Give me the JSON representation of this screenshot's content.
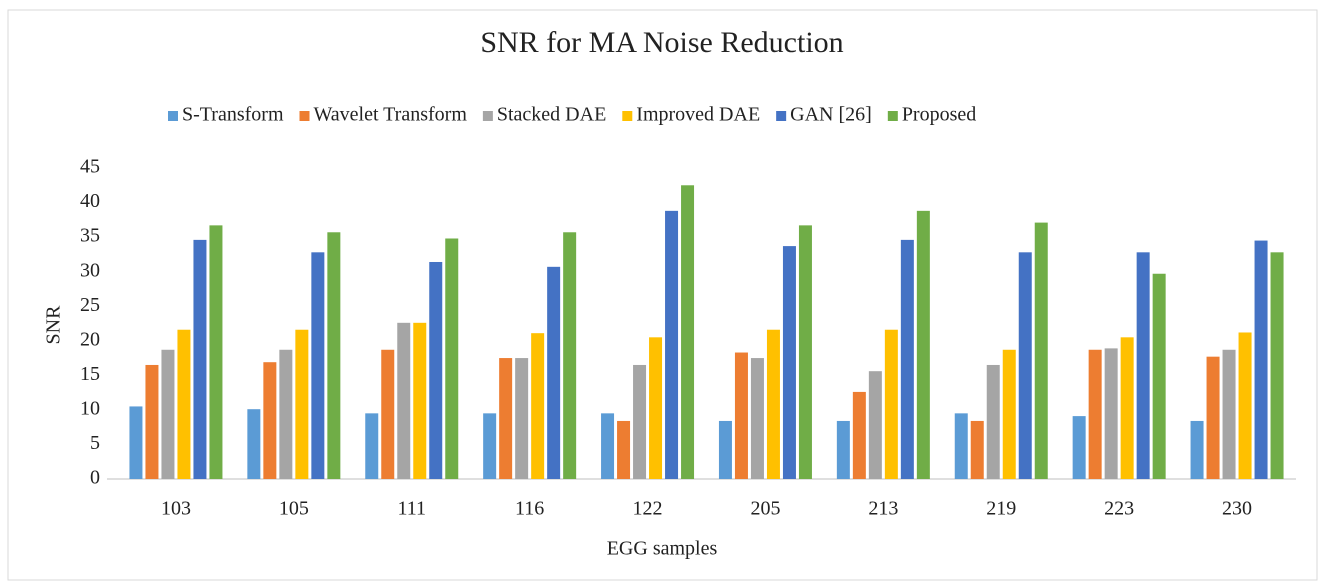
{
  "chart_data": {
    "type": "bar",
    "title": "SNR for MA Noise Reduction",
    "x_label": "EGG samples",
    "y_label": "SNR",
    "categories": [
      "103",
      "105",
      "111",
      "116",
      "122",
      "205",
      "213",
      "219",
      "223",
      "230"
    ],
    "series": [
      {
        "name": "S-Transform",
        "color": "#5b9bd5",
        "values": [
          10.5,
          10.1,
          9.5,
          9.5,
          9.5,
          8.4,
          8.4,
          9.5,
          9.1,
          8.4
        ]
      },
      {
        "name": "Wavelet Transform",
        "color": "#ed7d31",
        "values": [
          16.5,
          16.9,
          18.7,
          17.5,
          8.4,
          18.3,
          12.6,
          8.4,
          18.7,
          17.7
        ]
      },
      {
        "name": "Stacked DAE",
        "color": "#a5a5a5",
        "values": [
          18.7,
          18.7,
          22.6,
          17.5,
          16.5,
          17.5,
          15.6,
          16.5,
          18.9,
          18.7
        ]
      },
      {
        "name": "Improved DAE",
        "color": "#ffc000",
        "values": [
          21.6,
          21.6,
          22.6,
          21.1,
          20.5,
          21.6,
          21.6,
          18.7,
          20.5,
          21.2
        ]
      },
      {
        "name": "GAN [26]",
        "color": "#4472c4",
        "values": [
          34.6,
          32.8,
          31.4,
          30.7,
          38.8,
          33.7,
          34.6,
          32.8,
          32.8,
          34.5
        ]
      },
      {
        "name": "Proposed",
        "color": "#70ad47",
        "values": [
          36.7,
          35.7,
          34.8,
          35.7,
          42.5,
          36.7,
          38.8,
          37.1,
          29.7,
          32.8
        ]
      }
    ],
    "ylim": [
      0,
      45
    ],
    "yticks": [
      0,
      5,
      10,
      15,
      20,
      25,
      30,
      35,
      40,
      45
    ],
    "grid": false,
    "legend": "top"
  }
}
